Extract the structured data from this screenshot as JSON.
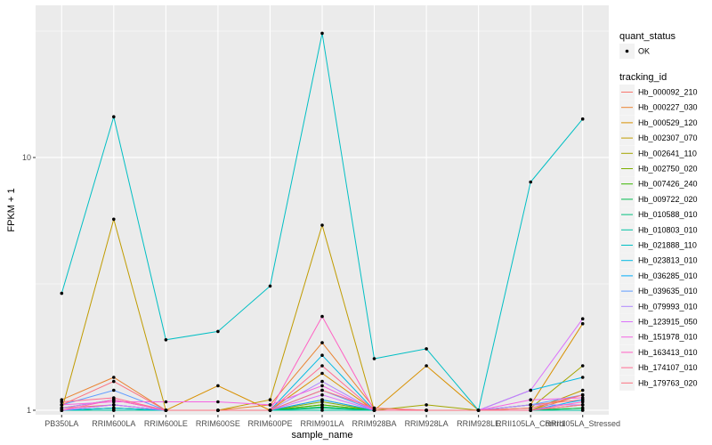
{
  "chart_data": {
    "type": "line",
    "xlabel": "sample_name",
    "ylabel": "FPKM + 1",
    "y_scale": "log",
    "ylim": [
      0.96,
      40
    ],
    "y_ticks": [
      {
        "value": 1,
        "label": "1"
      },
      {
        "value": 10,
        "label": "10"
      }
    ],
    "grid": true,
    "legend_position": "right",
    "categories": [
      "PB350LA",
      "RRIM600LA",
      "RRIM600LE",
      "RRIM600SE",
      "RRIM600PE",
      "RRIM901LA",
      "RRIM928BA",
      "RRIM928LA",
      "RRIM928LE",
      "RRII105LA_Control",
      "RRII105LA_Stressed"
    ],
    "shape_legend": {
      "title": "quant_status",
      "entries": [
        "OK"
      ]
    },
    "color_legend_title": "tracking_id",
    "series": [
      {
        "name": "Hb_000092_210",
        "color": "#F8766D",
        "values": [
          1.02,
          1.05,
          1.0,
          1.0,
          1.0,
          1.1,
          1.0,
          1.0,
          1.0,
          1.05,
          1.1
        ]
      },
      {
        "name": "Hb_000227_030",
        "color": "#EA8331",
        "values": [
          1.1,
          1.35,
          1.0,
          1.0,
          1.05,
          1.85,
          1.02,
          1.0,
          1.0,
          1.0,
          1.15
        ]
      },
      {
        "name": "Hb_000529_120",
        "color": "#D89000",
        "values": [
          1.02,
          1.1,
          1.0,
          1.25,
          1.0,
          1.4,
          1.0,
          1.5,
          1.0,
          1.05,
          2.2
        ]
      },
      {
        "name": "Hb_002307_070",
        "color": "#C09B00",
        "values": [
          1.0,
          5.7,
          1.0,
          1.0,
          1.1,
          5.4,
          1.0,
          1.0,
          1.0,
          1.0,
          1.2
        ]
      },
      {
        "name": "Hb_002641_110",
        "color": "#A3A500",
        "values": [
          1.0,
          1.02,
          1.0,
          1.0,
          1.0,
          1.05,
          1.0,
          1.05,
          1.0,
          1.02,
          1.5
        ]
      },
      {
        "name": "Hb_002750_020",
        "color": "#7CAE00",
        "values": [
          1.0,
          1.02,
          1.0,
          1.0,
          1.0,
          1.08,
          1.0,
          1.0,
          1.0,
          1.0,
          1.05
        ]
      },
      {
        "name": "Hb_007426_240",
        "color": "#39B600",
        "values": [
          1.0,
          1.0,
          1.0,
          1.0,
          1.0,
          1.05,
          1.0,
          1.0,
          1.0,
          1.0,
          1.02
        ]
      },
      {
        "name": "Hb_009722_020",
        "color": "#00BB4E",
        "values": [
          1.0,
          1.0,
          1.0,
          1.0,
          1.0,
          1.03,
          1.0,
          1.0,
          1.0,
          1.0,
          1.02
        ]
      },
      {
        "name": "Hb_010588_010",
        "color": "#00BF7D",
        "values": [
          1.0,
          1.02,
          1.0,
          1.0,
          1.0,
          1.02,
          1.0,
          1.0,
          1.0,
          1.0,
          1.0
        ]
      },
      {
        "name": "Hb_010803_010",
        "color": "#00C1A3",
        "values": [
          1.0,
          1.0,
          1.0,
          1.0,
          1.0,
          1.0,
          1.0,
          1.0,
          1.0,
          1.0,
          1.0
        ]
      },
      {
        "name": "Hb_021888_110",
        "color": "#00BFC4",
        "values": [
          2.9,
          14.5,
          1.9,
          2.05,
          3.1,
          31.0,
          1.6,
          1.75,
          1.0,
          8.0,
          14.2
        ]
      },
      {
        "name": "Hb_023813_010",
        "color": "#00B9E3",
        "values": [
          1.0,
          1.02,
          1.0,
          1.0,
          1.0,
          1.65,
          1.0,
          1.0,
          1.0,
          1.2,
          1.35
        ]
      },
      {
        "name": "Hb_036285_010",
        "color": "#00ADFA",
        "values": [
          1.0,
          1.05,
          1.0,
          1.0,
          1.0,
          1.1,
          1.0,
          1.0,
          1.0,
          1.0,
          1.1
        ]
      },
      {
        "name": "Hb_039635_010",
        "color": "#619CFF",
        "values": [
          1.05,
          1.2,
          1.0,
          1.0,
          1.0,
          1.2,
          1.0,
          1.0,
          1.0,
          1.05,
          1.15
        ]
      },
      {
        "name": "Hb_079993_010",
        "color": "#AE87FF",
        "values": [
          1.02,
          1.1,
          1.0,
          1.0,
          1.0,
          1.3,
          1.0,
          1.0,
          1.0,
          1.05,
          1.05
        ]
      },
      {
        "name": "Hb_123915_050",
        "color": "#DB72FB",
        "values": [
          1.0,
          1.05,
          1.0,
          1.0,
          1.0,
          1.15,
          1.0,
          1.0,
          1.0,
          1.2,
          2.3
        ]
      },
      {
        "name": "Hb_151978_010",
        "color": "#F564E3",
        "values": [
          1.05,
          1.08,
          1.08,
          1.08,
          1.05,
          1.25,
          1.0,
          1.0,
          1.0,
          1.1,
          1.12
        ]
      },
      {
        "name": "Hb_163413_010",
        "color": "#FF61C3",
        "values": [
          1.0,
          1.1,
          1.0,
          1.0,
          1.0,
          2.35,
          1.0,
          1.0,
          1.0,
          1.0,
          1.08
        ]
      },
      {
        "name": "Hb_174107_010",
        "color": "#FF6C91",
        "values": [
          1.08,
          1.12,
          1.0,
          1.0,
          1.0,
          1.5,
          1.0,
          1.0,
          1.0,
          1.0,
          1.05
        ]
      },
      {
        "name": "Hb_179763_020",
        "color": "#FC717F",
        "values": [
          1.05,
          1.3,
          1.0,
          1.0,
          1.0,
          1.2,
          1.02,
          1.0,
          1.0,
          1.02,
          1.15
        ]
      }
    ]
  }
}
